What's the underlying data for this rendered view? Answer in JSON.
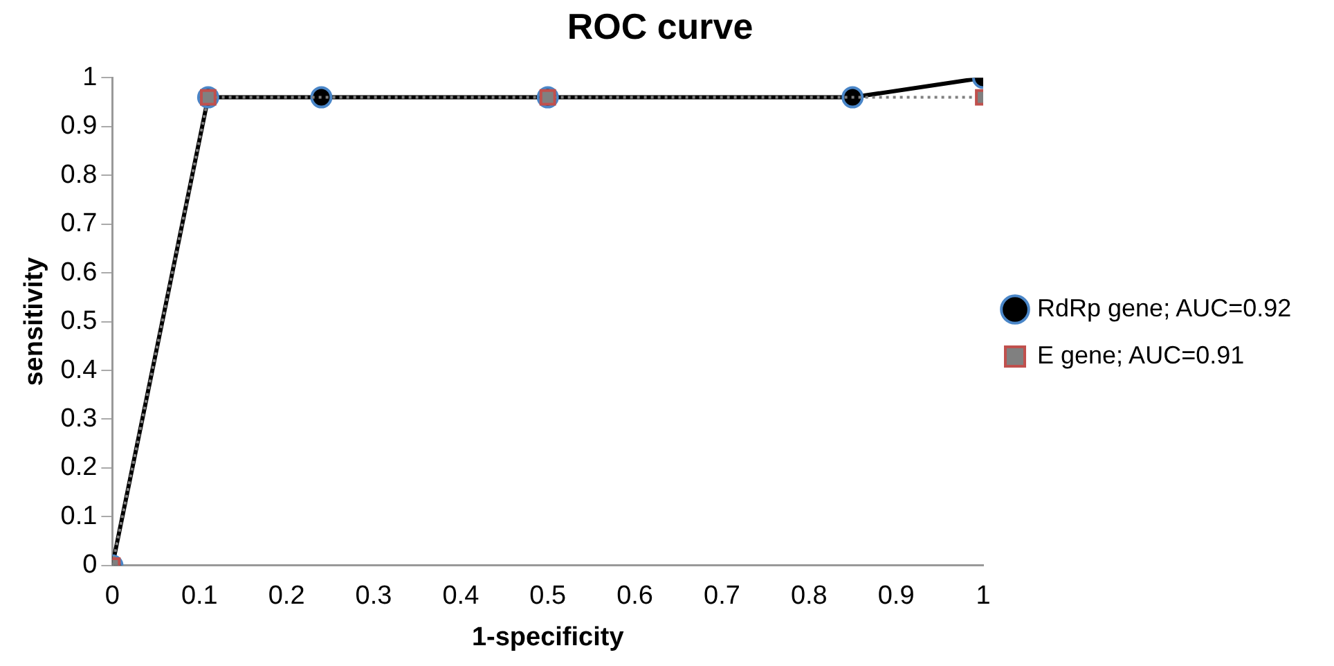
{
  "chart_data": {
    "type": "line",
    "title": "ROC curve",
    "xlabel": "1-specificity",
    "ylabel": "sensitivity",
    "xlim": [
      0,
      1
    ],
    "xticks": [
      0,
      0.1,
      0.2,
      0.3,
      0.4,
      0.5,
      0.6,
      0.7,
      0.8,
      0.9,
      1
    ],
    "ylim": [
      0,
      1
    ],
    "yticks": [
      0,
      0.1,
      0.2,
      0.3,
      0.4,
      0.5,
      0.6,
      0.7,
      0.8,
      0.9,
      1
    ],
    "grid": false,
    "legend": "right",
    "series": [
      {
        "name": "RdRp gene; AUC=0.92",
        "color": "#000000",
        "marker": "circle",
        "line_style": "solid",
        "x": [
          0,
          0.11,
          0.24,
          0.5,
          0.85,
          1
        ],
        "values": [
          0,
          0.96,
          0.96,
          0.96,
          0.96,
          1
        ]
      },
      {
        "name": "E gene; AUC=0.91",
        "color": "#808080",
        "marker": "square",
        "line_style": "dotted",
        "x": [
          0,
          0.11,
          0.5,
          1
        ],
        "values": [
          0,
          0.96,
          0.96,
          0.96
        ]
      }
    ]
  }
}
